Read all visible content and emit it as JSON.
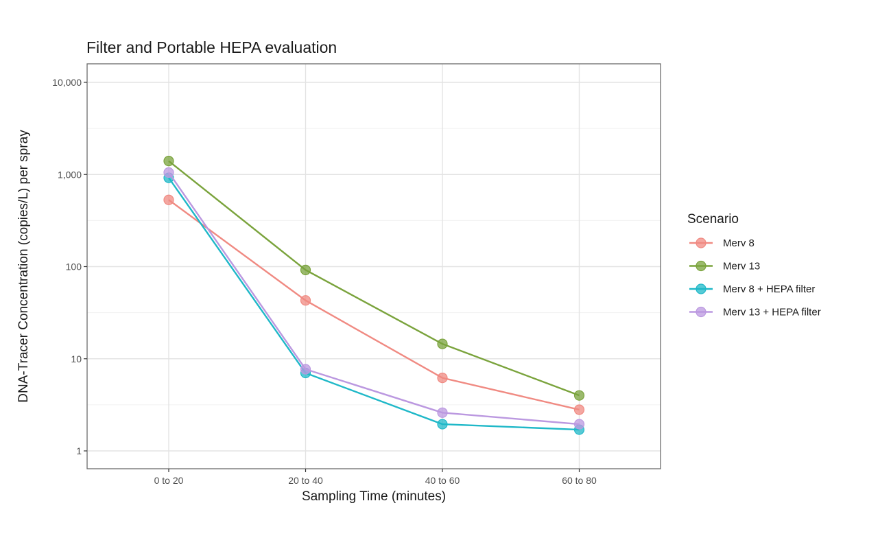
{
  "chart_data": {
    "type": "line",
    "title": "Filter and Portable HEPA evaluation",
    "xlabel": "Sampling Time (minutes)",
    "ylabel": "DNA-Tracer Concentration (copies/L) per spray",
    "categories": [
      "0 to 20",
      "20 to 40",
      "40 to 60",
      "60 to 80"
    ],
    "y_scale": "log10",
    "ylim": [
      0.6,
      20000
    ],
    "y_ticks": [
      1,
      10,
      100,
      1000,
      10000
    ],
    "y_tick_labels": [
      "1",
      "10",
      "100",
      "1,000",
      "10,000"
    ],
    "grid": true,
    "legend_title": "Scenario",
    "legend_position": "right",
    "series": [
      {
        "name": "Merv 8",
        "color": "#f08a82",
        "values": [
          530,
          43,
          6.2,
          2.8
        ]
      },
      {
        "name": "Merv 13",
        "color": "#7aa33c",
        "values": [
          1400,
          92,
          14.5,
          4.0
        ]
      },
      {
        "name": "Merv 8 + HEPA filter",
        "color": "#1fb8c8",
        "values": [
          920,
          7.0,
          1.95,
          1.7
        ]
      },
      {
        "name": "Merv 13 + HEPA filter",
        "color": "#bb98e0",
        "values": [
          1050,
          7.7,
          2.6,
          1.95
        ]
      }
    ]
  }
}
